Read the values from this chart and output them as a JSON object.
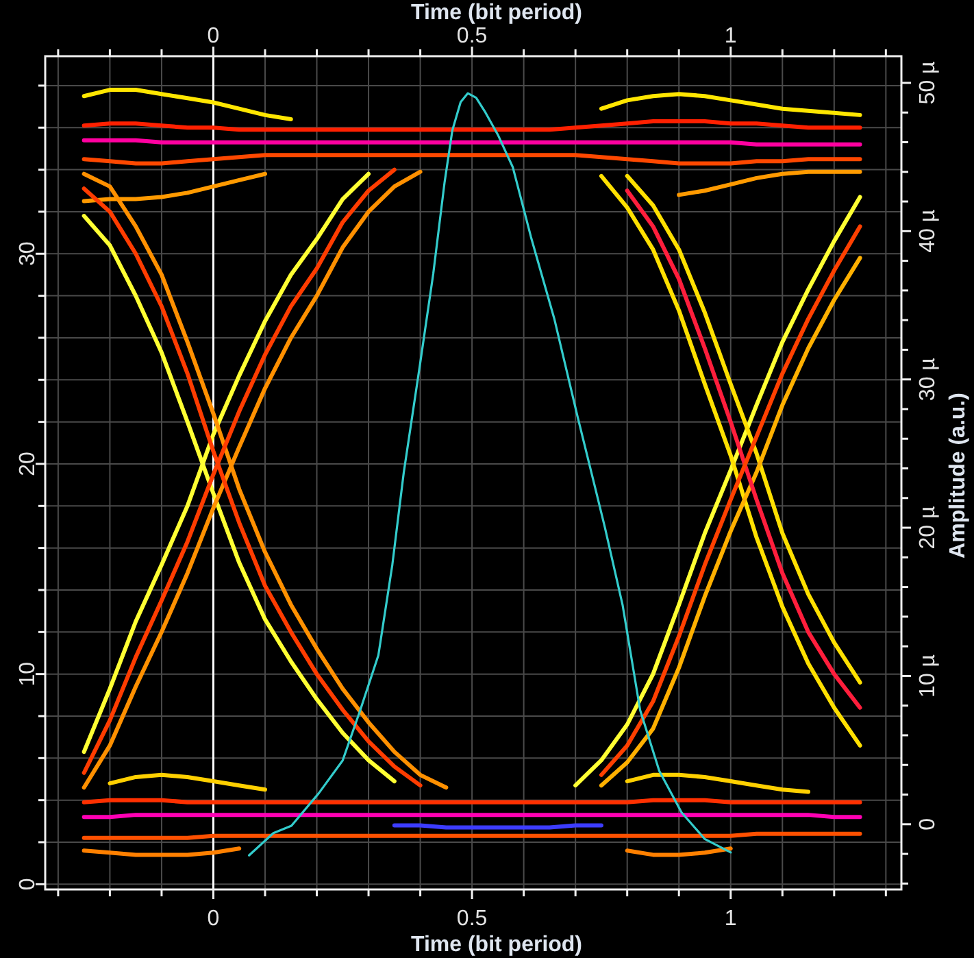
{
  "chart_data": {
    "type": "line",
    "xlabel": "Time (bit period)",
    "x2label": "Time (bit period)",
    "y2label": "Amplitude (a.u.)",
    "xlim": [
      -0.325,
      1.33
    ],
    "x2lim": [
      -0.325,
      1.33
    ],
    "ylim": [
      -0.25,
      39.4
    ],
    "y2lim": [
      -4.4,
      51.8
    ],
    "xticks": [
      {
        "value": -0.3,
        "label": null
      },
      {
        "value": -0.2,
        "label": null
      },
      {
        "value": -0.1,
        "label": null
      },
      0,
      {
        "value": 0.1,
        "label": null
      },
      {
        "value": 0.2,
        "label": null
      },
      {
        "value": 0.3,
        "label": null
      },
      {
        "value": 0.4,
        "label": null
      },
      0.5,
      {
        "value": 0.6,
        "label": null
      },
      {
        "value": 0.7,
        "label": null
      },
      {
        "value": 0.8,
        "label": null
      },
      {
        "value": 0.9,
        "label": null
      },
      1,
      {
        "value": 1.1,
        "label": null
      },
      {
        "value": 1.2,
        "label": null
      },
      {
        "value": 1.3,
        "label": null
      }
    ],
    "x2ticks": [
      {
        "value": -0.3,
        "label": null
      },
      {
        "value": -0.2,
        "label": null
      },
      {
        "value": -0.1,
        "label": null
      },
      0,
      {
        "value": 0.1,
        "label": null
      },
      {
        "value": 0.2,
        "label": null
      },
      {
        "value": 0.3,
        "label": null
      },
      {
        "value": 0.4,
        "label": null
      },
      0.5,
      {
        "value": 0.6,
        "label": null
      },
      {
        "value": 0.7,
        "label": null
      },
      {
        "value": 0.8,
        "label": null
      },
      {
        "value": 0.9,
        "label": null
      },
      1,
      {
        "value": 1.1,
        "label": null
      },
      {
        "value": 1.2,
        "label": null
      },
      {
        "value": 1.3,
        "label": null
      }
    ],
    "yticks": [
      0,
      {
        "value": 2,
        "label": null
      },
      {
        "value": 4,
        "label": null
      },
      {
        "value": 6,
        "label": null
      },
      {
        "value": 8,
        "label": null
      },
      10,
      {
        "value": 12,
        "label": null
      },
      {
        "value": 14,
        "label": null
      },
      {
        "value": 16,
        "label": null
      },
      {
        "value": 18,
        "label": null
      },
      20,
      {
        "value": 22,
        "label": null
      },
      {
        "value": 24,
        "label": null
      },
      {
        "value": 26,
        "label": null
      },
      {
        "value": 28,
        "label": null
      },
      30,
      {
        "value": 32,
        "label": null
      },
      {
        "value": 34,
        "label": null
      },
      {
        "value": 36,
        "label": null
      },
      {
        "value": 38,
        "label": null
      }
    ],
    "y2ticks": [
      {
        "value": -4,
        "label": null
      },
      {
        "value": -2,
        "label": null
      },
      0,
      {
        "value": 2,
        "label": null
      },
      {
        "value": 4,
        "label": null
      },
      {
        "value": 6,
        "label": null
      },
      {
        "value": 8,
        "label": null
      },
      {
        "value": 10,
        "label": "10 µ"
      },
      {
        "value": 12,
        "label": null
      },
      {
        "value": 14,
        "label": null
      },
      {
        "value": 16,
        "label": null
      },
      {
        "value": 18,
        "label": null
      },
      {
        "value": 20,
        "label": "20 µ"
      },
      {
        "value": 22,
        "label": null
      },
      {
        "value": 24,
        "label": null
      },
      {
        "value": 26,
        "label": null
      },
      {
        "value": 28,
        "label": null
      },
      {
        "value": 30,
        "label": "30 µ"
      },
      {
        "value": 32,
        "label": null
      },
      {
        "value": 34,
        "label": null
      },
      {
        "value": 36,
        "label": null
      },
      {
        "value": 38,
        "label": null
      },
      {
        "value": 40,
        "label": "40 µ"
      },
      {
        "value": 42,
        "label": null
      },
      {
        "value": 44,
        "label": null
      },
      {
        "value": 46,
        "label": null
      },
      {
        "value": 48,
        "label": null
      },
      {
        "value": 50,
        "label": "50 µ"
      }
    ],
    "grid": true,
    "ref_lines": [
      {
        "axis": "x",
        "value": 0,
        "color": "#ffffff"
      }
    ],
    "x": [
      -0.25,
      -0.2,
      -0.15,
      -0.1,
      -0.05,
      0,
      0.05,
      0.1,
      0.15,
      0.2,
      0.25,
      0.3,
      0.35,
      0.4,
      0.45,
      0.5,
      0.55,
      0.6,
      0.65,
      0.7,
      0.75,
      0.8,
      0.85,
      0.9,
      0.95,
      1,
      1.05,
      1.1,
      1.15,
      1.2,
      1.25
    ],
    "series": [
      {
        "color": "#ffe600",
        "values": [
          37.5,
          37.8,
          37.8,
          37.6,
          37.4,
          37.2,
          36.9,
          36.6,
          36.4,
          null,
          null,
          null,
          null,
          null,
          null,
          null,
          null,
          null,
          null,
          null,
          36.9,
          37.3,
          37.5,
          37.6,
          37.5,
          37.3,
          37.1,
          36.9,
          36.8,
          36.7,
          36.6
        ]
      },
      {
        "color": "#ff9a00",
        "values": [
          32.5,
          32.6,
          32.6,
          32.7,
          32.9,
          33.2,
          33.5,
          33.8,
          null,
          null,
          null,
          null,
          null,
          null,
          null,
          null,
          null,
          null,
          null,
          null,
          null,
          null,
          null,
          32.8,
          33,
          33.3,
          33.6,
          33.8,
          33.9,
          33.9,
          33.9
        ]
      },
      {
        "color": "#ffd000",
        "values": [
          null,
          4.8,
          5.1,
          5.2,
          5.1,
          4.9,
          4.7,
          4.5,
          null,
          null,
          null,
          null,
          null,
          null,
          null,
          null,
          null,
          null,
          null,
          null,
          null,
          4.9,
          5.2,
          5.2,
          5.1,
          4.9,
          4.7,
          4.5,
          4.4,
          null,
          null
        ]
      },
      {
        "color": "#ff8000",
        "values": [
          1.6,
          1.5,
          1.4,
          1.4,
          1.4,
          1.5,
          1.7,
          null,
          null,
          null,
          null,
          null,
          null,
          null,
          null,
          null,
          null,
          null,
          null,
          null,
          null,
          1.6,
          1.4,
          1.4,
          1.5,
          1.7,
          null,
          null,
          null,
          null,
          null
        ]
      },
      {
        "color": "#ff2000",
        "values": [
          36.1,
          36.2,
          36.2,
          36.1,
          36,
          36,
          35.9,
          35.9,
          35.9,
          35.9,
          35.9,
          35.9,
          35.9,
          35.9,
          35.9,
          35.9,
          35.9,
          35.9,
          35.9,
          36,
          36.1,
          36.2,
          36.3,
          36.3,
          36.3,
          36.2,
          36.2,
          36.1,
          36,
          36,
          36
        ]
      },
      {
        "color": "#ff4800",
        "values": [
          34.5,
          34.4,
          34.3,
          34.3,
          34.4,
          34.5,
          34.6,
          34.7,
          34.7,
          34.7,
          34.7,
          34.7,
          34.7,
          34.7,
          34.7,
          34.7,
          34.7,
          34.7,
          34.7,
          34.7,
          34.6,
          34.5,
          34.4,
          34.3,
          34.3,
          34.3,
          34.4,
          34.4,
          34.5,
          34.5,
          34.5
        ]
      },
      {
        "color": "#ff3000",
        "values": [
          3.9,
          4,
          4,
          4,
          3.9,
          3.9,
          3.9,
          3.9,
          3.9,
          3.9,
          3.9,
          3.9,
          3.9,
          3.9,
          3.9,
          3.9,
          3.9,
          3.9,
          3.9,
          3.9,
          3.9,
          3.9,
          4,
          4,
          4,
          3.9,
          3.9,
          3.9,
          3.9,
          3.9,
          3.9
        ]
      },
      {
        "color": "#ff5000",
        "values": [
          2.2,
          2.2,
          2.2,
          2.2,
          2.2,
          2.3,
          2.3,
          2.3,
          2.3,
          2.3,
          2.3,
          2.3,
          2.3,
          2.3,
          2.3,
          2.3,
          2.3,
          2.3,
          2.3,
          2.3,
          2.3,
          2.3,
          2.3,
          2.3,
          2.3,
          2.3,
          2.4,
          2.4,
          2.4,
          2.4,
          2.4
        ]
      },
      {
        "color": "#ff00a0",
        "values": [
          35.4,
          35.4,
          35.4,
          35.3,
          35.3,
          35.3,
          35.3,
          35.3,
          35.3,
          35.3,
          35.3,
          35.3,
          35.3,
          35.3,
          35.3,
          35.3,
          35.3,
          35.3,
          35.3,
          35.3,
          35.3,
          35.3,
          35.3,
          35.3,
          35.3,
          35.3,
          35.2,
          35.2,
          35.2,
          35.2,
          35.2
        ]
      },
      {
        "color": "#ff00b4",
        "values": [
          3.2,
          3.2,
          3.3,
          3.3,
          3.3,
          3.3,
          3.3,
          3.3,
          3.3,
          3.3,
          3.3,
          3.3,
          3.3,
          3.3,
          3.3,
          3.3,
          3.3,
          3.3,
          3.3,
          3.3,
          3.3,
          3.3,
          3.3,
          3.3,
          3.3,
          3.3,
          3.3,
          3.3,
          3.3,
          3.2,
          3.2
        ]
      },
      {
        "color": "#3c3cff",
        "values": [
          null,
          null,
          null,
          null,
          null,
          null,
          null,
          null,
          null,
          null,
          null,
          null,
          2.8,
          2.8,
          2.7,
          2.7,
          2.7,
          2.7,
          2.7,
          2.8,
          2.8,
          null,
          null,
          null,
          null,
          null,
          null,
          null,
          null,
          null,
          null
        ]
      },
      {
        "color": "#ffff33",
        "values": [
          6.3,
          9.3,
          12.5,
          15.2,
          18,
          21.4,
          24.2,
          26.8,
          29,
          30.7,
          32.6,
          33.8,
          null,
          null,
          null,
          null,
          null,
          null,
          null,
          null,
          null,
          null,
          null,
          null,
          null,
          null,
          null,
          null,
          null,
          null,
          null
        ]
      },
      {
        "color": "#ffff33",
        "values": [
          31.8,
          30.4,
          28,
          25.3,
          22,
          18.6,
          15.3,
          12.6,
          10.6,
          8.8,
          7.2,
          5.9,
          4.9,
          null,
          null,
          null,
          null,
          null,
          null,
          null,
          null,
          null,
          null,
          null,
          null,
          null,
          null,
          null,
          null,
          null,
          null
        ]
      },
      {
        "color": "#ffff33",
        "values": [
          null,
          null,
          null,
          null,
          null,
          null,
          null,
          null,
          null,
          null,
          null,
          null,
          null,
          null,
          null,
          null,
          null,
          null,
          null,
          4.7,
          5.9,
          7.6,
          10,
          13.3,
          16.7,
          19.7,
          22.8,
          25.8,
          28.3,
          30.6,
          32.7
        ]
      },
      {
        "color": "#ffe000",
        "values": [
          null,
          null,
          null,
          null,
          null,
          null,
          null,
          null,
          null,
          null,
          null,
          null,
          null,
          null,
          null,
          null,
          null,
          null,
          null,
          null,
          null,
          33.7,
          32.3,
          30.2,
          27.2,
          23.8,
          20.5,
          16.7,
          13.8,
          11.5,
          9.6
        ]
      },
      {
        "color": "#ffe000",
        "values": [
          null,
          null,
          null,
          null,
          null,
          null,
          null,
          null,
          null,
          null,
          null,
          null,
          null,
          null,
          null,
          null,
          null,
          null,
          null,
          null,
          33.7,
          32.2,
          30.2,
          27.3,
          23.8,
          20.4,
          16.5,
          13.2,
          10.5,
          8.4,
          6.6
        ]
      },
      {
        "color": "#ff9000",
        "values": [
          33.8,
          33.2,
          31.3,
          29,
          25.8,
          22.4,
          18.8,
          15.8,
          13.3,
          11.2,
          9.3,
          7.7,
          6.3,
          5.2,
          4.6,
          null,
          null,
          null,
          null,
          null,
          null,
          null,
          null,
          null,
          null,
          null,
          null,
          null,
          null,
          null,
          null
        ]
      },
      {
        "color": "#ff9000",
        "values": [
          4.6,
          6.6,
          9.4,
          12,
          14.8,
          17.9,
          20.8,
          23.6,
          26,
          28,
          30.3,
          32,
          33.2,
          33.9,
          null,
          null,
          null,
          null,
          null,
          null,
          null,
          null,
          null,
          null,
          null,
          null,
          null,
          null,
          null,
          null,
          null
        ]
      },
      {
        "color": "#ffb000",
        "values": [
          null,
          null,
          null,
          null,
          null,
          null,
          null,
          null,
          null,
          null,
          null,
          null,
          null,
          null,
          null,
          null,
          null,
          null,
          null,
          null,
          4.7,
          5.8,
          7.4,
          10.3,
          13.7,
          16.8,
          19.6,
          22.8,
          25.5,
          27.8,
          29.8
        ]
      },
      {
        "color": "#ff3c00",
        "values": [
          33.1,
          32,
          30,
          27.5,
          24.3,
          20.6,
          17.2,
          14.2,
          12,
          10,
          8.3,
          6.8,
          5.6,
          4.7,
          null,
          null,
          null,
          null,
          null,
          null,
          null,
          null,
          null,
          null,
          null,
          null,
          null,
          null,
          null,
          null,
          null
        ]
      },
      {
        "color": "#ff3c00",
        "values": [
          5.3,
          7.8,
          10.8,
          13.5,
          16.3,
          19.5,
          22.5,
          25.2,
          27.5,
          29.3,
          31.5,
          33,
          34,
          null,
          null,
          null,
          null,
          null,
          null,
          null,
          null,
          null,
          null,
          null,
          null,
          null,
          null,
          null,
          null,
          null,
          null
        ]
      },
      {
        "color": "#ff1e3c",
        "values": [
          null,
          null,
          null,
          null,
          null,
          null,
          null,
          null,
          null,
          null,
          null,
          null,
          null,
          null,
          null,
          null,
          null,
          null,
          null,
          null,
          null,
          33,
          31.3,
          28.8,
          25.5,
          22,
          18.3,
          14.8,
          12,
          10,
          8.4
        ]
      },
      {
        "color": "#ff4000",
        "values": [
          null,
          null,
          null,
          null,
          null,
          null,
          null,
          null,
          null,
          null,
          null,
          null,
          null,
          null,
          null,
          null,
          null,
          null,
          null,
          null,
          5.2,
          6.6,
          8.7,
          11.8,
          15.2,
          18.3,
          21.3,
          24.3,
          26.9,
          29.2,
          31.3
        ]
      },
      {
        "color": "#33cccc",
        "axis": "y2",
        "x": [
          0.069,
          0.116,
          0.151,
          0.204,
          0.25,
          0.284,
          0.319,
          0.346,
          0.368,
          0.399,
          0.425,
          0.447,
          0.462,
          0.478,
          0.492,
          0.508,
          0.526,
          0.55,
          0.579,
          0.614,
          0.659,
          0.704,
          0.738,
          0.757,
          0.791,
          0.825,
          0.862,
          0.905,
          0.95,
          1
        ],
        "values": [
          -2.1,
          -0.6,
          -0.1,
          2.1,
          4.3,
          7.7,
          11.4,
          17.5,
          23.7,
          30.9,
          37.1,
          43.3,
          46.8,
          48.7,
          49.3,
          49,
          48,
          46.5,
          44.3,
          39.6,
          34.1,
          27.5,
          22.7,
          20,
          14.8,
          7.7,
          3.6,
          0.8,
          -1,
          -1.9
        ]
      }
    ]
  }
}
